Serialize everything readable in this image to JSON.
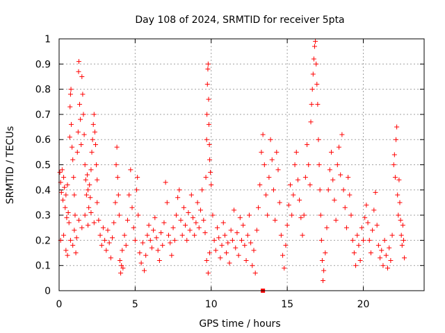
{
  "chart_data": {
    "type": "scatter",
    "title": "Day 108 of 2024, SRMTID for receiver 5pta",
    "xlabel": "GPS time / hours",
    "ylabel": "SRMTID / TECUs",
    "xlim": [
      0,
      24
    ],
    "ylim": [
      0,
      1
    ],
    "xticks": [
      0,
      5,
      10,
      15,
      20
    ],
    "yticks": [
      0,
      0.1,
      0.2,
      0.3,
      0.4,
      0.5,
      0.6,
      0.7,
      0.8,
      0.9,
      1
    ],
    "xtick_labels": [
      "0",
      "5",
      "10",
      "15",
      "20"
    ],
    "ytick_labels": [
      "0",
      "0.1",
      "0.2",
      "0.3",
      "0.4",
      "0.5",
      "0.6",
      "0.7",
      "0.8",
      "0.9",
      "1"
    ],
    "grid": true,
    "marker": "+",
    "marker_color": "#ff0000",
    "series": [
      {
        "name": "SRMTID",
        "points": [
          [
            0.05,
            0.47
          ],
          [
            0.1,
            0.43
          ],
          [
            0.15,
            0.39
          ],
          [
            0.2,
            0.48
          ],
          [
            0.25,
            0.36
          ],
          [
            0.3,
            0.45
          ],
          [
            0.35,
            0.41
          ],
          [
            0.4,
            0.33
          ],
          [
            0.45,
            0.38
          ],
          [
            0.5,
            0.29
          ],
          [
            0.55,
            0.42
          ],
          [
            0.6,
            0.31
          ],
          [
            0.65,
            0.27
          ],
          [
            0.1,
            0.2
          ],
          [
            0.3,
            0.22
          ],
          [
            0.45,
            0.16
          ],
          [
            0.55,
            0.14
          ],
          [
            0.7,
            0.61
          ],
          [
            0.72,
            0.73
          ],
          [
            0.75,
            0.78
          ],
          [
            0.78,
            0.8
          ],
          [
            0.8,
            0.66
          ],
          [
            0.85,
            0.57
          ],
          [
            0.9,
            0.52
          ],
          [
            0.95,
            0.45
          ],
          [
            1.0,
            0.38
          ],
          [
            1.05,
            0.3
          ],
          [
            0.75,
            0.2
          ],
          [
            0.9,
            0.18
          ],
          [
            1.0,
            0.24
          ],
          [
            1.1,
            0.15
          ],
          [
            1.15,
            0.21
          ],
          [
            1.2,
            0.55
          ],
          [
            1.25,
            0.63
          ],
          [
            1.28,
            0.87
          ],
          [
            1.3,
            0.91
          ],
          [
            1.35,
            0.74
          ],
          [
            1.4,
            0.68
          ],
          [
            1.45,
            0.58
          ],
          [
            1.5,
            0.85
          ],
          [
            1.55,
            0.78
          ],
          [
            1.6,
            0.7
          ],
          [
            1.65,
            0.62
          ],
          [
            1.7,
            0.5
          ],
          [
            1.75,
            0.44
          ],
          [
            1.8,
            0.38
          ],
          [
            1.85,
            0.46
          ],
          [
            1.9,
            0.4
          ],
          [
            1.95,
            0.33
          ],
          [
            2.0,
            0.42
          ],
          [
            2.05,
            0.37
          ],
          [
            2.1,
            0.48
          ],
          [
            2.15,
            0.55
          ],
          [
            2.2,
            0.6
          ],
          [
            2.25,
            0.66
          ],
          [
            2.3,
            0.7
          ],
          [
            2.35,
            0.63
          ],
          [
            2.4,
            0.58
          ],
          [
            2.45,
            0.5
          ],
          [
            2.5,
            0.44
          ],
          [
            1.3,
            0.28
          ],
          [
            1.5,
            0.25
          ],
          [
            1.7,
            0.3
          ],
          [
            1.9,
            0.26
          ],
          [
            2.1,
            0.31
          ],
          [
            2.3,
            0.27
          ],
          [
            2.5,
            0.35
          ],
          [
            2.6,
            0.28
          ],
          [
            2.7,
            0.22
          ],
          [
            2.8,
            0.18
          ],
          [
            2.9,
            0.25
          ],
          [
            3.0,
            0.2
          ],
          [
            3.1,
            0.16
          ],
          [
            3.2,
            0.24
          ],
          [
            3.3,
            0.19
          ],
          [
            3.4,
            0.13
          ],
          [
            3.5,
            0.21
          ],
          [
            3.6,
            0.27
          ],
          [
            3.7,
            0.35
          ],
          [
            3.75,
            0.5
          ],
          [
            3.8,
            0.57
          ],
          [
            3.85,
            0.45
          ],
          [
            3.9,
            0.38
          ],
          [
            3.95,
            0.3
          ],
          [
            4.0,
            0.12
          ],
          [
            4.05,
            0.07
          ],
          [
            4.1,
            0.1
          ],
          [
            4.15,
            0.16
          ],
          [
            4.2,
            0.09
          ],
          [
            4.3,
            0.22
          ],
          [
            4.4,
            0.18
          ],
          [
            4.5,
            0.28
          ],
          [
            4.6,
            0.38
          ],
          [
            4.7,
            0.48
          ],
          [
            4.8,
            0.33
          ],
          [
            4.9,
            0.25
          ],
          [
            5.0,
            0.2
          ],
          [
            5.1,
            0.4
          ],
          [
            5.15,
            0.45
          ],
          [
            5.2,
            0.3
          ],
          [
            5.3,
            0.15
          ],
          [
            5.4,
            0.11
          ],
          [
            5.5,
            0.19
          ],
          [
            5.6,
            0.08
          ],
          [
            5.7,
            0.14
          ],
          [
            5.8,
            0.22
          ],
          [
            5.9,
            0.26
          ],
          [
            6.0,
            0.2
          ],
          [
            6.1,
            0.17
          ],
          [
            6.2,
            0.24
          ],
          [
            6.3,
            0.29
          ],
          [
            6.4,
            0.21
          ],
          [
            6.5,
            0.16
          ],
          [
            6.6,
            0.12
          ],
          [
            6.7,
            0.23
          ],
          [
            6.8,
            0.18
          ],
          [
            6.9,
            0.27
          ],
          [
            7.0,
            0.43
          ],
          [
            7.1,
            0.35
          ],
          [
            7.2,
            0.22
          ],
          [
            7.3,
            0.19
          ],
          [
            7.4,
            0.14
          ],
          [
            7.5,
            0.25
          ],
          [
            7.6,
            0.2
          ],
          [
            7.7,
            0.3
          ],
          [
            7.8,
            0.37
          ],
          [
            7.9,
            0.4
          ],
          [
            8.0,
            0.28
          ],
          [
            8.1,
            0.22
          ],
          [
            8.2,
            0.33
          ],
          [
            8.3,
            0.26
          ],
          [
            8.4,
            0.2
          ],
          [
            8.5,
            0.31
          ],
          [
            8.6,
            0.24
          ],
          [
            8.7,
            0.38
          ],
          [
            8.8,
            0.29
          ],
          [
            8.9,
            0.22
          ],
          [
            9.0,
            0.27
          ],
          [
            9.1,
            0.35
          ],
          [
            9.2,
            0.25
          ],
          [
            9.3,
            0.32
          ],
          [
            9.4,
            0.4
          ],
          [
            9.5,
            0.28
          ],
          [
            9.6,
            0.23
          ],
          [
            9.65,
            0.45
          ],
          [
            9.7,
            0.6
          ],
          [
            9.72,
            0.7
          ],
          [
            9.75,
            0.82
          ],
          [
            9.78,
            0.88
          ],
          [
            9.8,
            0.9
          ],
          [
            9.83,
            0.76
          ],
          [
            9.85,
            0.66
          ],
          [
            9.88,
            0.58
          ],
          [
            9.9,
            0.52
          ],
          [
            9.95,
            0.47
          ],
          [
            10.0,
            0.42
          ],
          [
            9.7,
            0.12
          ],
          [
            9.8,
            0.07
          ],
          [
            9.9,
            0.15
          ],
          [
            10.1,
            0.3
          ],
          [
            10.2,
            0.2
          ],
          [
            10.3,
            0.16
          ],
          [
            10.4,
            0.25
          ],
          [
            10.5,
            0.21
          ],
          [
            10.6,
            0.13
          ],
          [
            10.7,
            0.18
          ],
          [
            10.8,
            0.27
          ],
          [
            10.9,
            0.22
          ],
          [
            11.0,
            0.15
          ],
          [
            11.1,
            0.19
          ],
          [
            11.2,
            0.11
          ],
          [
            11.3,
            0.24
          ],
          [
            11.4,
            0.2
          ],
          [
            11.5,
            0.32
          ],
          [
            11.6,
            0.17
          ],
          [
            11.7,
            0.23
          ],
          [
            11.8,
            0.14
          ],
          [
            11.9,
            0.29
          ],
          [
            12.0,
            0.2
          ],
          [
            12.1,
            0.26
          ],
          [
            12.2,
            0.18
          ],
          [
            12.3,
            0.12
          ],
          [
            12.4,
            0.22
          ],
          [
            12.5,
            0.3
          ],
          [
            12.6,
            0.19
          ],
          [
            12.7,
            0.1
          ],
          [
            12.8,
            0.16
          ],
          [
            12.9,
            0.07
          ],
          [
            13.0,
            0.24
          ],
          [
            13.1,
            0.33
          ],
          [
            13.2,
            0.42
          ],
          [
            13.3,
            0.55
          ],
          [
            13.4,
            0.62
          ],
          [
            13.5,
            0.5
          ],
          [
            13.6,
            0.38
          ],
          [
            13.7,
            0.3
          ],
          [
            13.8,
            0.45
          ],
          [
            13.9,
            0.6
          ],
          [
            14.0,
            0.52
          ],
          [
            14.1,
            0.4
          ],
          [
            14.2,
            0.28
          ],
          [
            14.3,
            0.55
          ],
          [
            14.4,
            0.48
          ],
          [
            14.5,
            0.35
          ],
          [
            14.6,
            0.22
          ],
          [
            14.7,
            0.14
          ],
          [
            14.8,
            0.09
          ],
          [
            14.9,
            0.18
          ],
          [
            15.0,
            0.26
          ],
          [
            15.1,
            0.34
          ],
          [
            15.2,
            0.42
          ],
          [
            15.3,
            0.3
          ],
          [
            15.4,
            0.38
          ],
          [
            15.5,
            0.5
          ],
          [
            15.6,
            0.55
          ],
          [
            15.7,
            0.44
          ],
          [
            15.8,
            0.36
          ],
          [
            15.9,
            0.29
          ],
          [
            16.0,
            0.22
          ],
          [
            16.1,
            0.3
          ],
          [
            16.2,
            0.45
          ],
          [
            16.3,
            0.58
          ],
          [
            16.4,
            0.5
          ],
          [
            16.5,
            0.42
          ],
          [
            16.55,
            0.67
          ],
          [
            16.6,
            0.74
          ],
          [
            16.65,
            0.8
          ],
          [
            16.7,
            0.86
          ],
          [
            16.75,
            0.92
          ],
          [
            16.8,
            0.97
          ],
          [
            16.85,
            0.99
          ],
          [
            16.9,
            0.9
          ],
          [
            16.95,
            0.82
          ],
          [
            17.0,
            0.74
          ],
          [
            17.05,
            0.6
          ],
          [
            17.1,
            0.5
          ],
          [
            17.15,
            0.4
          ],
          [
            17.2,
            0.3
          ],
          [
            17.25,
            0.2
          ],
          [
            17.3,
            0.12
          ],
          [
            17.35,
            0.04
          ],
          [
            17.4,
            0.08
          ],
          [
            17.5,
            0.15
          ],
          [
            17.6,
            0.25
          ],
          [
            17.7,
            0.4
          ],
          [
            17.8,
            0.48
          ],
          [
            17.9,
            0.55
          ],
          [
            18.0,
            0.44
          ],
          [
            18.1,
            0.36
          ],
          [
            18.2,
            0.28
          ],
          [
            18.3,
            0.5
          ],
          [
            18.4,
            0.57
          ],
          [
            18.5,
            0.46
          ],
          [
            18.6,
            0.62
          ],
          [
            18.7,
            0.4
          ],
          [
            18.8,
            0.33
          ],
          [
            18.9,
            0.25
          ],
          [
            19.0,
            0.45
          ],
          [
            19.1,
            0.38
          ],
          [
            19.2,
            0.3
          ],
          [
            19.3,
            0.2
          ],
          [
            19.4,
            0.15
          ],
          [
            19.5,
            0.1
          ],
          [
            19.6,
            0.22
          ],
          [
            19.7,
            0.18
          ],
          [
            19.8,
            0.12
          ],
          [
            19.9,
            0.25
          ],
          [
            20.0,
            0.2
          ],
          [
            20.1,
            0.29
          ],
          [
            20.2,
            0.34
          ],
          [
            20.3,
            0.27
          ],
          [
            20.4,
            0.2
          ],
          [
            20.5,
            0.15
          ],
          [
            20.6,
            0.24
          ],
          [
            20.7,
            0.32
          ],
          [
            20.8,
            0.39
          ],
          [
            20.9,
            0.26
          ],
          [
            21.0,
            0.18
          ],
          [
            21.1,
            0.13
          ],
          [
            21.2,
            0.16
          ],
          [
            21.3,
            0.1
          ],
          [
            21.4,
            0.2
          ],
          [
            21.5,
            0.14
          ],
          [
            21.6,
            0.09
          ],
          [
            21.7,
            0.17
          ],
          [
            21.8,
            0.12
          ],
          [
            21.9,
            0.22
          ],
          [
            22.0,
            0.5
          ],
          [
            22.05,
            0.54
          ],
          [
            22.1,
            0.45
          ],
          [
            22.15,
            0.6
          ],
          [
            22.2,
            0.65
          ],
          [
            22.25,
            0.38
          ],
          [
            22.3,
            0.3
          ],
          [
            22.35,
            0.44
          ],
          [
            22.4,
            0.35
          ],
          [
            22.45,
            0.28
          ],
          [
            22.5,
            0.22
          ],
          [
            22.55,
            0.18
          ],
          [
            22.6,
            0.26
          ],
          [
            22.65,
            0.2
          ],
          [
            22.7,
            0.13
          ]
        ]
      }
    ],
    "outlier_point": [
      13.4,
      0.0
    ]
  }
}
